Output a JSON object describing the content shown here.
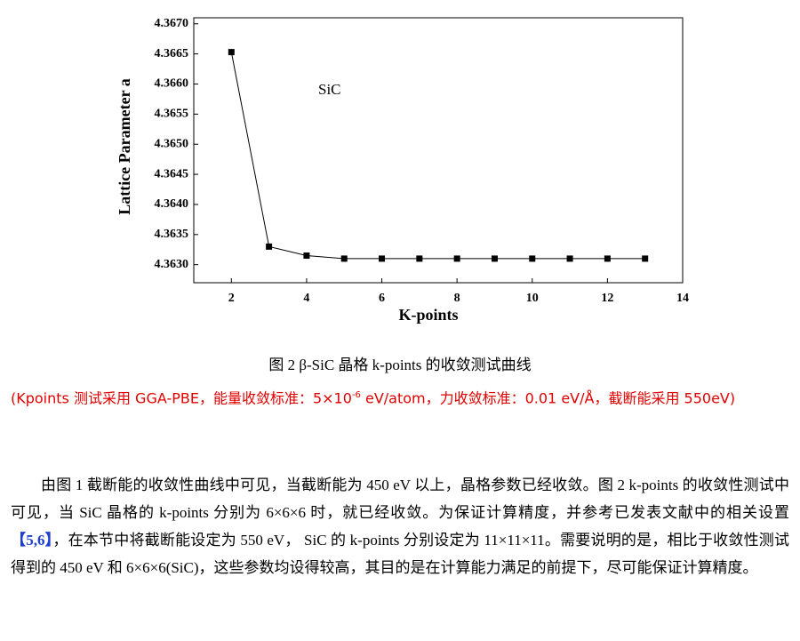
{
  "chart_data": {
    "type": "line",
    "ylabel": "Lattice Parameter  a",
    "xlabel": "K-points",
    "annotation": "SiC",
    "x": [
      2,
      3,
      4,
      5,
      6,
      7,
      8,
      9,
      10,
      11,
      12,
      13
    ],
    "values": [
      4.36653,
      4.3633,
      4.36315,
      4.3631,
      4.3631,
      4.3631,
      4.3631,
      4.3631,
      4.3631,
      4.3631,
      4.3631,
      4.3631
    ],
    "color": "#000000",
    "xlim": [
      1,
      14
    ],
    "xticks": [
      2,
      4,
      6,
      8,
      10,
      12,
      14
    ],
    "ylim": [
      4.3627,
      4.3671
    ],
    "yticks": [
      {
        "value": 4.363,
        "label": "4.3630"
      },
      {
        "value": 4.3635,
        "label": "4.3635"
      },
      {
        "value": 4.364,
        "label": "4.3640"
      },
      {
        "value": 4.3645,
        "label": "4.3645"
      },
      {
        "value": 4.365,
        "label": "4.3650"
      },
      {
        "value": 4.3655,
        "label": "4.3655"
      },
      {
        "value": 4.366,
        "label": "4.3660"
      },
      {
        "value": 4.3665,
        "label": "4.3665"
      },
      {
        "value": 4.367,
        "label": "4.3670"
      }
    ]
  },
  "caption": "图 2  β-SiC  晶格  k-points  的收敛测试曲线",
  "note": {
    "before": "(Kpoints 测试采用 GGA-PBE，能量收敛标准：5×10",
    "sup": "-6",
    "after": " eV/atom，力收敛标准：0.01 eV/Å，截断能采用 550eV)"
  },
  "body": {
    "part1": "由图 1 截断能的收敛性曲线中可见，当截断能为 450 eV 以上，晶格参数已经收敛。图 2 k-points 的收敛性测试中可见，当 SiC 晶格的 k-points 分别为 6×6×6 时，就已经收敛。为保证计算精度，并参考已发表文献中的相关设置",
    "ref": "【5,6】",
    "part2": "，在本节中将截断能设定为 550 eV， SiC 的 k-points 分别设定为 11×11×11。需要说明的是，相比于收敛性测试得到的 450 eV 和 6×6×6(SiC)，这些参数均设得较高，其目的是在计算能力满足的前提下，尽可能保证计算精度。"
  }
}
